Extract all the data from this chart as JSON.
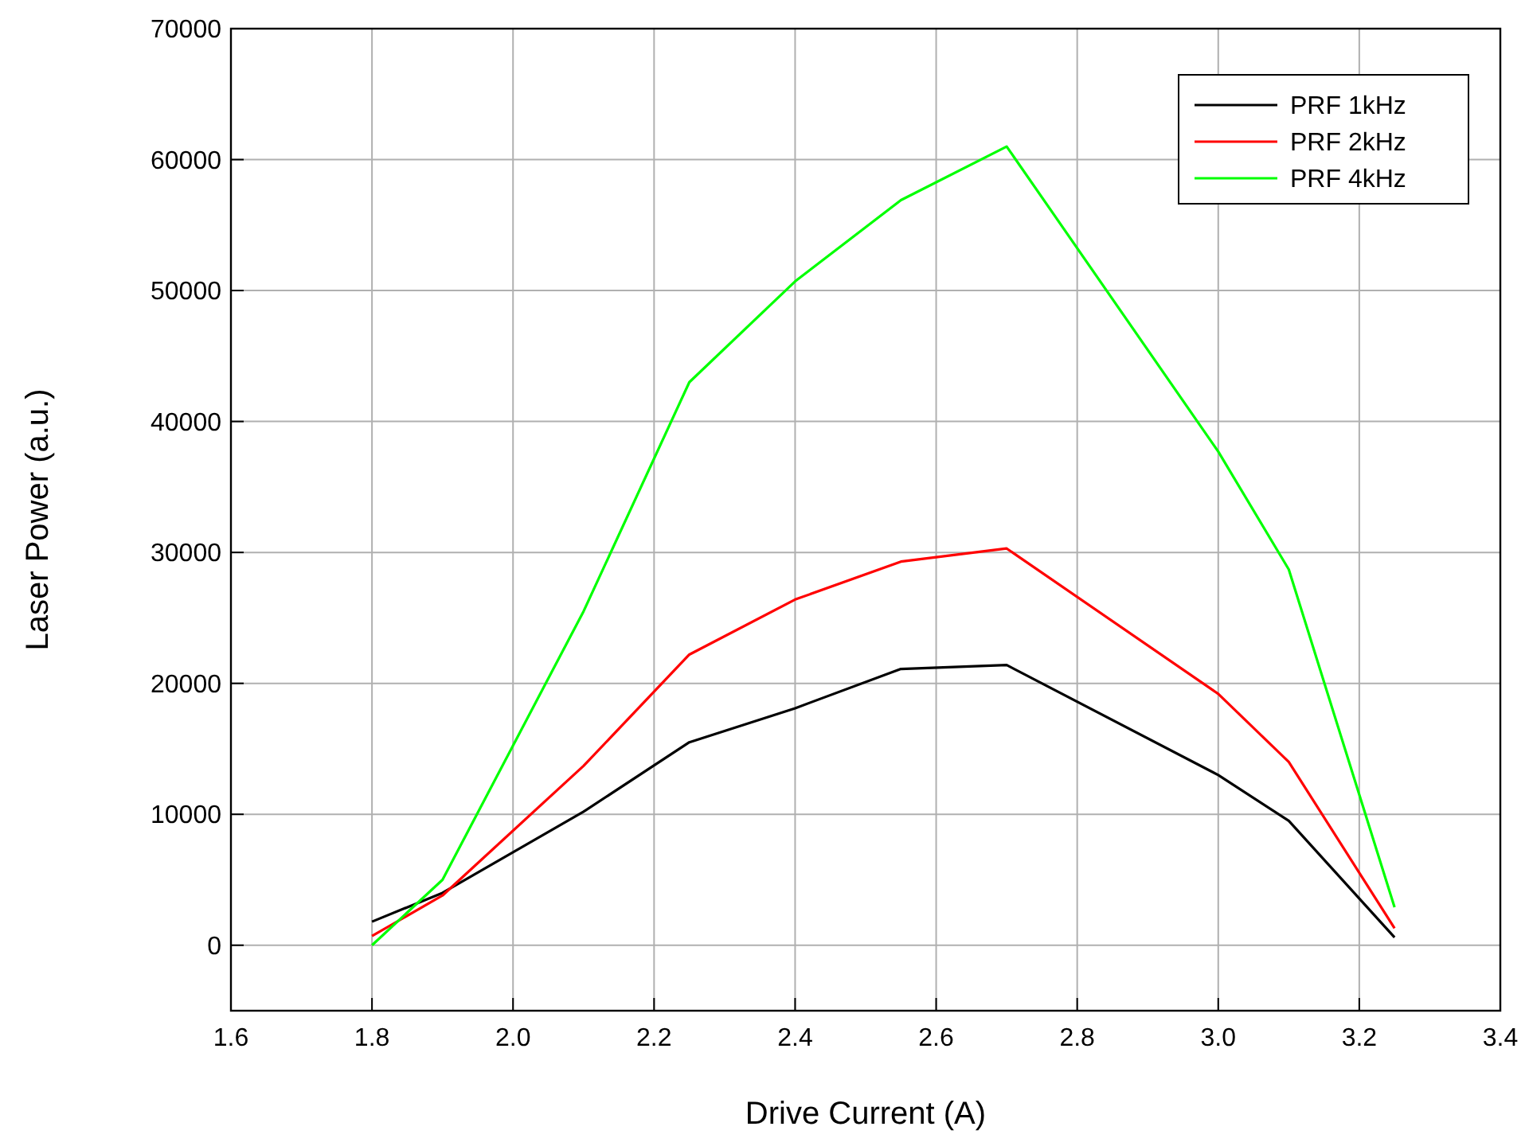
{
  "chart_data": {
    "type": "line",
    "xlabel": "Drive Current (A)",
    "ylabel": "Laser Power (a.u.)",
    "x": [
      1.8,
      1.9,
      2.1,
      2.25,
      2.4,
      2.55,
      2.7,
      3.0,
      3.1,
      3.25
    ],
    "series": [
      {
        "name": "PRF 1kHz",
        "color": "#000000",
        "values": [
          1800,
          4000,
          10200,
          15500,
          18100,
          21100,
          21400,
          13000,
          9500,
          600
        ]
      },
      {
        "name": "PRF 2kHz",
        "color": "#ff0000",
        "values": [
          700,
          3800,
          13700,
          22200,
          26400,
          29300,
          30300,
          19200,
          14000,
          1300
        ]
      },
      {
        "name": "PRF 4kHz",
        "color": "#00ff00",
        "values": [
          0,
          5000,
          25500,
          43000,
          50700,
          56900,
          61000,
          37700,
          28700,
          2900
        ]
      }
    ],
    "xlim": [
      1.6,
      3.4
    ],
    "xticks": [
      {
        "value": 1.6,
        "label": "1.6"
      },
      {
        "value": 1.8,
        "label": "1.8"
      },
      {
        "value": 2.0,
        "label": "2.0"
      },
      {
        "value": 2.2,
        "label": "2.2"
      },
      {
        "value": 2.4,
        "label": "2.4"
      },
      {
        "value": 2.6,
        "label": "2.6"
      },
      {
        "value": 2.8,
        "label": "2.8"
      },
      {
        "value": 3.0,
        "label": "3.0"
      },
      {
        "value": 3.2,
        "label": "3.2"
      },
      {
        "value": 3.4,
        "label": "3.4"
      }
    ],
    "ylim": [
      -5000,
      70000
    ],
    "yticks": [
      0,
      10000,
      20000,
      30000,
      40000,
      50000,
      60000,
      70000
    ],
    "grid": true,
    "legend": "top right",
    "marker": "none",
    "line_style": "solid"
  }
}
